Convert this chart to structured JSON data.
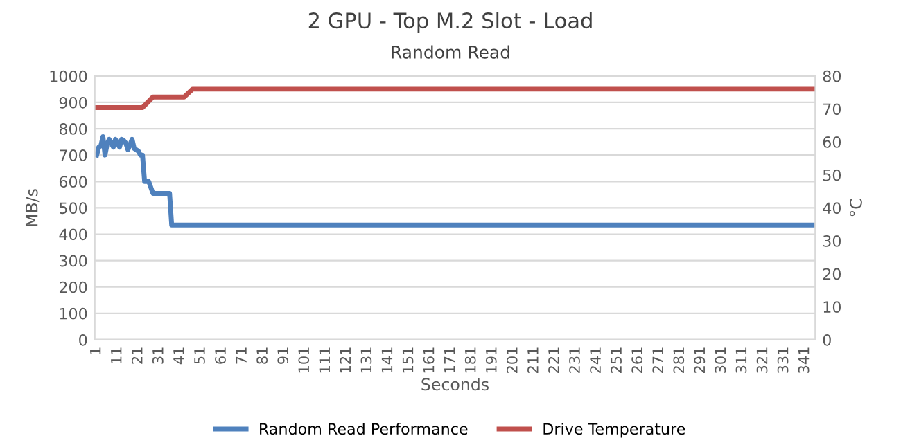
{
  "chart_data": {
    "type": "line",
    "title": "2 GPU - Top M.2 Slot - Load",
    "subtitle": "Random Read",
    "xlabel": "Seconds",
    "ylabel": "MB/s",
    "y2label": "°C",
    "series": [
      {
        "name": "Random Read Performance",
        "color": "#4f81bd",
        "x": [
          1,
          2,
          3,
          4,
          5,
          6,
          7,
          8,
          9,
          10,
          11,
          12,
          13,
          14,
          15,
          16,
          17,
          18,
          19,
          20,
          21,
          22,
          23,
          24,
          26,
          28,
          36,
          37,
          345
        ],
        "values": [
          700,
          730,
          735,
          770,
          700,
          740,
          760,
          745,
          730,
          760,
          745,
          730,
          760,
          755,
          745,
          720,
          740,
          760,
          725,
          720,
          715,
          700,
          700,
          600,
          600,
          555,
          555,
          435,
          435
        ]
      },
      {
        "name": "Drive Temperature",
        "color": "#c0504d",
        "axis": "y2",
        "x": [
          1,
          23,
          28,
          43,
          47,
          345
        ],
        "values": [
          70.4,
          70.4,
          73.6,
          73.6,
          76,
          76
        ]
      }
    ],
    "xlim": [
      0,
      346
    ],
    "xticks": [
      1,
      11,
      21,
      31,
      41,
      51,
      61,
      71,
      81,
      91,
      101,
      111,
      121,
      131,
      141,
      151,
      161,
      171,
      181,
      191,
      201,
      211,
      221,
      231,
      241,
      251,
      261,
      271,
      281,
      291,
      301,
      311,
      321,
      331,
      341
    ],
    "ylim": [
      0,
      1000
    ],
    "yticks": [
      0,
      100,
      200,
      300,
      400,
      500,
      600,
      700,
      800,
      900,
      1000
    ],
    "y2lim": [
      0,
      80
    ],
    "y2ticks": [
      0,
      10,
      20,
      30,
      40,
      50,
      60,
      70,
      80
    ],
    "grid": "y",
    "legend": "bottom",
    "marker": "none",
    "line_style": "solid"
  }
}
